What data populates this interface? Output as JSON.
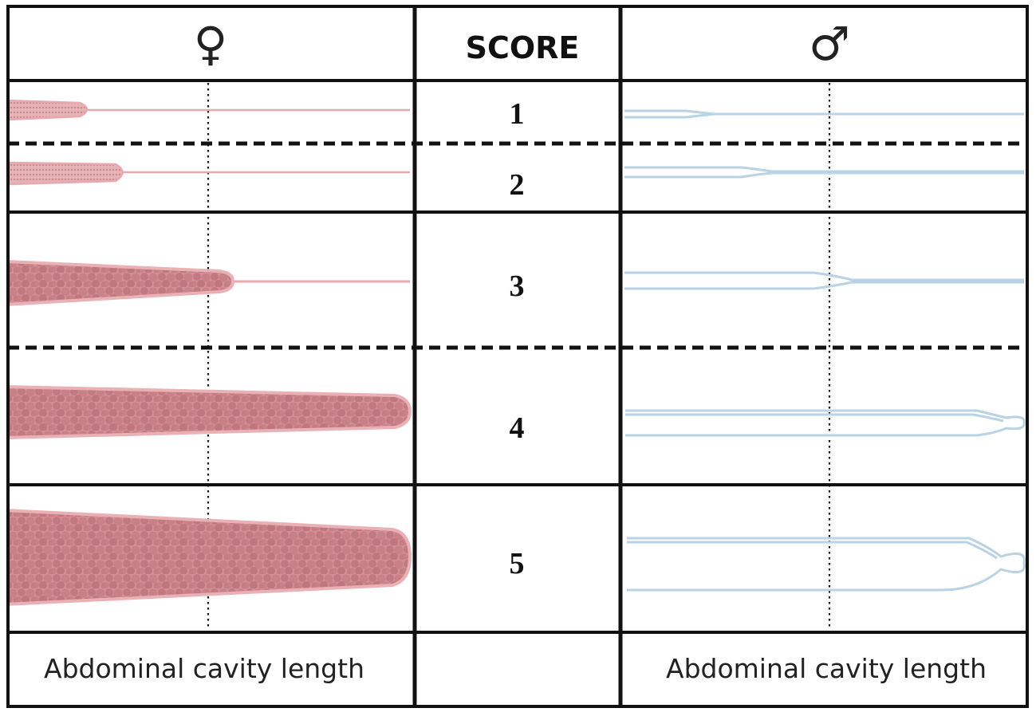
{
  "header": {
    "female_symbol": "♀",
    "score_label": "SCORE",
    "male_symbol": "♂"
  },
  "scores": [
    {
      "label": "1",
      "female_fill": 0.2,
      "male_level": 0.2
    },
    {
      "label": "2",
      "female_fill": 0.29,
      "male_level": 0.35
    },
    {
      "label": "3",
      "female_fill": 0.55,
      "male_level": 0.53
    },
    {
      "label": "4",
      "female_fill": 1.0,
      "male_level": 1.0
    },
    {
      "label": "5",
      "female_fill": 1.0,
      "male_level": 1.0
    }
  ],
  "footer": {
    "female_caption": "Abdominal cavity length",
    "male_caption": "Abdominal cavity length"
  },
  "colors": {
    "female_fill": "#d9989e",
    "female_cell": "#c57d84",
    "female_outline": "#e6aaae",
    "male_outline": "#b9d2e4",
    "grid": "#111111"
  }
}
